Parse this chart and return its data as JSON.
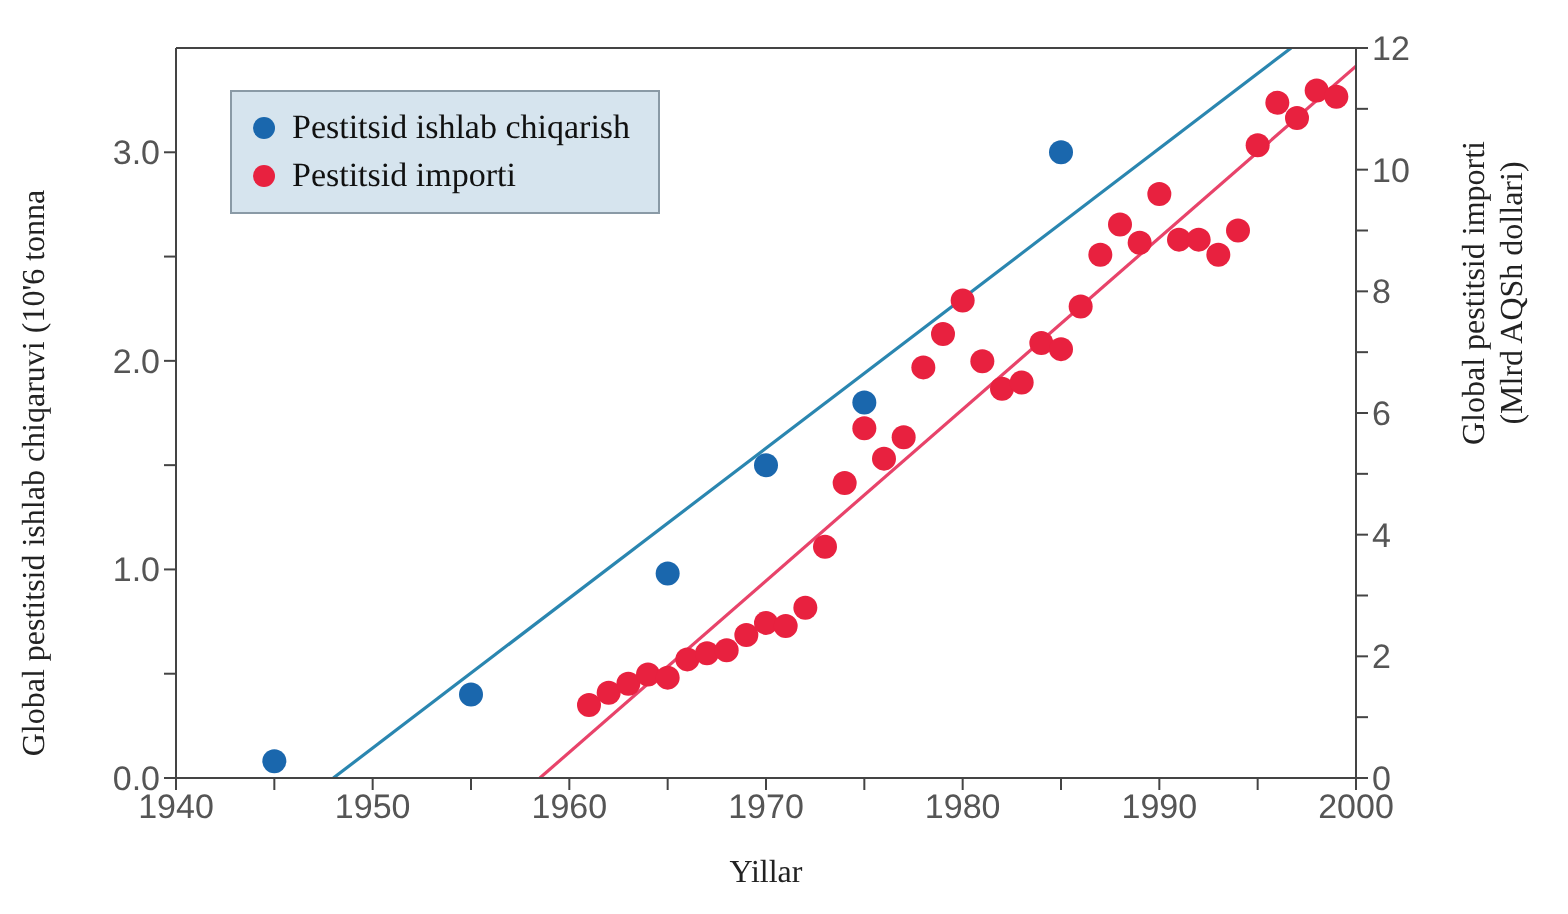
{
  "chart_data": {
    "type": "scatter",
    "xlabel": "Yillar",
    "ylabel": "Global pestitsid ishlab chiqaruvi (10'6 tonna",
    "y2label": "Global pestitsid importi (Mlrd AQSh dollari)",
    "xlim": [
      1940,
      2000
    ],
    "xticks": [
      1940,
      {
        "value": 1945,
        "label": null
      },
      1950,
      {
        "value": 1955,
        "label": null
      },
      1960,
      {
        "value": 1965,
        "label": null
      },
      1970,
      {
        "value": 1975,
        "label": null
      },
      1980,
      {
        "value": 1985,
        "label": null
      },
      1990,
      {
        "value": 1995,
        "label": null
      },
      2000
    ],
    "ylim": [
      0,
      3.5
    ],
    "yticks": [
      {
        "value": 0,
        "label": "0.0"
      },
      {
        "value": 0.5,
        "label": null
      },
      {
        "value": 1,
        "label": "1.0"
      },
      {
        "value": 1.5,
        "label": null
      },
      {
        "value": 2,
        "label": "2.0"
      },
      {
        "value": 2.5,
        "label": null
      },
      {
        "value": 3,
        "label": "3.0"
      }
    ],
    "y2lim": [
      0,
      12
    ],
    "y2ticks": [
      0,
      {
        "value": 1,
        "label": null
      },
      2,
      {
        "value": 3,
        "label": null
      },
      4,
      {
        "value": 5,
        "label": null
      },
      6,
      {
        "value": 7,
        "label": null
      },
      8,
      {
        "value": 9,
        "label": null
      },
      10,
      {
        "value": 11,
        "label": null
      },
      12
    ],
    "legend": "top left",
    "marker": "circle",
    "series": [
      {
        "name": "Pestitsid ishlab chiqarish",
        "color": "#1a67ad",
        "x": [
          1945,
          1955,
          1965,
          1970,
          1975,
          1985
        ],
        "values": [
          0.08,
          0.4,
          0.98,
          1.5,
          1.8,
          3.0
        ]
      },
      {
        "name": "Pestitsid importi",
        "color": "#e8213f",
        "axis": "y2",
        "x": [
          1961,
          1962,
          1963,
          1964,
          1965,
          1966,
          1967,
          1968,
          1969,
          1970,
          1971,
          1972,
          1973,
          1974,
          1975,
          1976,
          1977,
          1978,
          1979,
          1980,
          1981,
          1982,
          1983,
          1984,
          1985,
          1986,
          1987,
          1988,
          1989,
          1990,
          1991,
          1992,
          1993,
          1994,
          1995,
          1996,
          1997,
          1998,
          1999
        ],
        "values": [
          1.2,
          1.4,
          1.55,
          1.7,
          1.65,
          1.95,
          2.05,
          2.1,
          2.35,
          2.55,
          2.5,
          2.8,
          3.8,
          4.85,
          5.75,
          5.25,
          5.6,
          6.75,
          7.3,
          7.85,
          6.85,
          6.4,
          6.5,
          7.15,
          7.05,
          7.75,
          8.6,
          9.1,
          8.8,
          9.6,
          8.85,
          8.85,
          8.6,
          9.0,
          10.4,
          11.1,
          10.85,
          11.3,
          11.2
        ]
      },
      {
        "type": "line",
        "color": "#2a86b0",
        "marker": "none",
        "x": [
          1948,
          1996.7
        ],
        "values": [
          0,
          3.5
        ]
      },
      {
        "type": "line",
        "color": "#e8436a",
        "marker": "none",
        "axis": "y2",
        "x": [
          1958.5,
          2000
        ],
        "values": [
          0,
          11.7
        ]
      }
    ]
  }
}
